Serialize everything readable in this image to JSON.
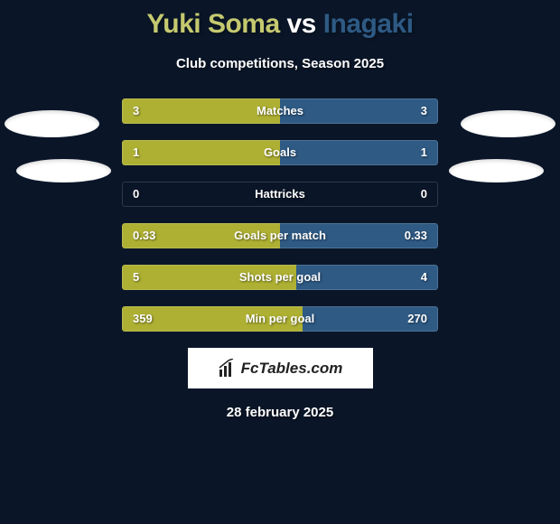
{
  "title": {
    "player1": "Yuki Soma",
    "vs": "vs",
    "player2": "Inagaki"
  },
  "subtitle": "Club competitions, Season 2025",
  "colors": {
    "player1": "#aeb033",
    "player2": "#2e5a84",
    "title_p1": "#c5c96f",
    "title_p2": "#2e5a84",
    "background": "#0a1628",
    "text": "#ffffff"
  },
  "stats": [
    {
      "label": "Matches",
      "left_val": "3",
      "right_val": "3",
      "left_pct": 50,
      "right_pct": 50
    },
    {
      "label": "Goals",
      "left_val": "1",
      "right_val": "1",
      "left_pct": 50,
      "right_pct": 50
    },
    {
      "label": "Hattricks",
      "left_val": "0",
      "right_val": "0",
      "left_pct": 0,
      "right_pct": 0
    },
    {
      "label": "Goals per match",
      "left_val": "0.33",
      "right_val": "0.33",
      "left_pct": 50,
      "right_pct": 50
    },
    {
      "label": "Shots per goal",
      "left_val": "5",
      "right_val": "4",
      "left_pct": 55,
      "right_pct": 45
    },
    {
      "label": "Min per goal",
      "left_val": "359",
      "right_val": "270",
      "left_pct": 57,
      "right_pct": 43
    }
  ],
  "logo_text": "FcTables.com",
  "footer_date": "28 february 2025"
}
